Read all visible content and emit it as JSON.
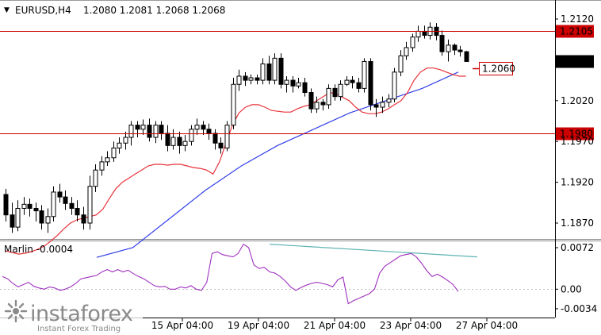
{
  "header": {
    "arrow": "▼",
    "symbol": "EURUSD,H4",
    "ohlc": "1.2080 1.2081 1.2068 1.2068"
  },
  "indicator": {
    "label": "Marlin -0.0004"
  },
  "watermark": {
    "brand": "instaforex",
    "tagline": "Instant Forex Trading"
  },
  "colors": {
    "bullish": "#ffffff",
    "bearish": "#000000",
    "candle_outline": "#000000",
    "ma_fast": "#e8333b",
    "ma_slow": "#3340e8",
    "level_line": "#cc0000",
    "oscillator": "#a030c0",
    "trend_line": "#5fb3b3",
    "grid": "#c0c0c0"
  },
  "chart_data": [
    {
      "type": "candlestick",
      "symbol": "EURUSD",
      "timeframe": "H4",
      "ylim": [
        1.1835,
        1.2135
      ],
      "y_ticks": [
        "1.2120",
        "1.2020",
        "1.1970",
        "1.1920",
        "1.1870"
      ],
      "x_ticks": [
        "15 Apr 04:00",
        "19 Apr 04:00",
        "21 Apr 04:00",
        "23 Apr 04:00",
        "27 Apr 04:00"
      ],
      "horizontal_levels": [
        {
          "value": 1.2105,
          "label": "1.2105"
        },
        {
          "value": 1.198,
          "label": "1.1980"
        }
      ],
      "current_price": {
        "value": 1.2068,
        "label": "1.2068"
      },
      "target_marker": {
        "value": 1.206,
        "label": "1.2060"
      },
      "candles": [
        [
          1.1905,
          1.188,
          1.1912,
          1.1872
        ],
        [
          1.188,
          1.1865,
          1.1895,
          1.1858
        ],
        [
          1.1865,
          1.1888,
          1.1898,
          1.186
        ],
        [
          1.1888,
          1.1893,
          1.1902,
          1.188
        ],
        [
          1.1893,
          1.1888,
          1.19,
          1.1878
        ],
        [
          1.1888,
          1.1885,
          1.1895,
          1.1872
        ],
        [
          1.1885,
          1.187,
          1.1892,
          1.1862
        ],
        [
          1.187,
          1.1878,
          1.1888,
          1.1858
        ],
        [
          1.1878,
          1.1908,
          1.1915,
          1.1872
        ],
        [
          1.1908,
          1.1902,
          1.1918,
          1.1895
        ],
        [
          1.1902,
          1.1894,
          1.191,
          1.1886
        ],
        [
          1.1894,
          1.1888,
          1.1902,
          1.188
        ],
        [
          1.1888,
          1.188,
          1.1898,
          1.1872
        ],
        [
          1.188,
          1.187,
          1.189,
          1.1862
        ],
        [
          1.187,
          1.1915,
          1.1928,
          1.1862
        ],
        [
          1.1915,
          1.1935,
          1.1942,
          1.1908
        ],
        [
          1.1935,
          1.1945,
          1.1952,
          1.1928
        ],
        [
          1.1945,
          1.195,
          1.1958,
          1.194
        ],
        [
          1.195,
          1.1962,
          1.197,
          1.1945
        ],
        [
          1.1962,
          1.1968,
          1.1975,
          1.1955
        ],
        [
          1.1968,
          1.1975,
          1.1982,
          1.196
        ],
        [
          1.1975,
          1.199,
          1.1995,
          1.1965
        ],
        [
          1.199,
          1.1985,
          1.1995,
          1.1975
        ],
        [
          1.1985,
          1.199,
          1.1997,
          1.1978
        ],
        [
          1.199,
          1.1975,
          1.1998,
          1.197
        ],
        [
          1.1975,
          1.199,
          1.1995,
          1.1968
        ],
        [
          1.199,
          1.198,
          1.1995,
          1.1972
        ],
        [
          1.198,
          1.1965,
          1.199,
          1.1958
        ],
        [
          1.1965,
          1.1975,
          1.1985,
          1.196
        ],
        [
          1.1975,
          1.1965,
          1.1982,
          1.1955
        ],
        [
          1.1965,
          1.197,
          1.1978,
          1.1958
        ],
        [
          1.197,
          1.1985,
          1.199,
          1.1965
        ],
        [
          1.1985,
          1.199,
          1.1998,
          1.1978
        ],
        [
          1.199,
          1.1985,
          1.1995,
          1.1978
        ],
        [
          1.1985,
          1.198,
          1.1992,
          1.1972
        ],
        [
          1.198,
          1.1968,
          1.1985,
          1.196
        ],
        [
          1.1968,
          1.1962,
          1.1975,
          1.1955
        ],
        [
          1.1962,
          1.199,
          1.1995,
          1.1958
        ],
        [
          1.199,
          1.204,
          1.2048,
          1.1985
        ],
        [
          1.204,
          1.205,
          1.2058,
          1.2032
        ],
        [
          1.205,
          1.2045,
          1.2055,
          1.2038
        ],
        [
          1.2045,
          1.2048,
          1.2052,
          1.204
        ],
        [
          1.2048,
          1.2045,
          1.2052,
          1.204
        ],
        [
          1.2045,
          1.2065,
          1.2072,
          1.204
        ],
        [
          1.2065,
          1.2045,
          1.2075,
          1.204
        ],
        [
          1.2045,
          1.2072,
          1.2078,
          1.204
        ],
        [
          1.2072,
          1.204,
          1.2078,
          1.2035
        ],
        [
          1.204,
          1.2045,
          1.205,
          1.203
        ],
        [
          1.2045,
          1.2038,
          1.205,
          1.203
        ],
        [
          1.2038,
          1.2042,
          1.2048,
          1.2035
        ],
        [
          1.2042,
          1.203,
          1.2048,
          1.2025
        ],
        [
          1.203,
          1.201,
          1.2035,
          1.2005
        ],
        [
          1.201,
          1.2018,
          1.2025,
          1.2005
        ],
        [
          1.2018,
          1.2015,
          1.2022,
          1.2008
        ],
        [
          1.2015,
          1.2035,
          1.204,
          1.201
        ],
        [
          1.2035,
          1.2025,
          1.204,
          1.202
        ],
        [
          1.2025,
          1.204,
          1.2045,
          1.202
        ],
        [
          1.204,
          1.2045,
          1.205,
          1.2038
        ],
        [
          1.2045,
          1.2042,
          1.205,
          1.2035
        ],
        [
          1.2042,
          1.2035,
          1.2048,
          1.203
        ],
        [
          1.2035,
          1.2068,
          1.2072,
          1.203
        ],
        [
          1.2068,
          1.2015,
          1.2072,
          1.2008
        ],
        [
          1.2015,
          1.2012,
          1.2022,
          1.2
        ],
        [
          1.2012,
          1.2018,
          1.2025,
          1.2005
        ],
        [
          1.2018,
          1.2022,
          1.2028,
          1.2012
        ],
        [
          1.2022,
          1.2055,
          1.206,
          1.2018
        ],
        [
          1.2055,
          1.2075,
          1.2082,
          1.205
        ],
        [
          1.2075,
          1.2085,
          1.2092,
          1.207
        ],
        [
          1.2085,
          1.2098,
          1.2102,
          1.208
        ],
        [
          1.2098,
          1.2105,
          1.2112,
          1.2092
        ],
        [
          1.2105,
          1.21,
          1.2112,
          1.2096
        ],
        [
          1.21,
          1.211,
          1.2116,
          1.2095
        ],
        [
          1.211,
          1.21,
          1.2115,
          1.2094
        ],
        [
          1.21,
          1.208,
          1.2106,
          1.2075
        ],
        [
          1.208,
          1.2088,
          1.2095,
          1.2068
        ],
        [
          1.2088,
          1.2082,
          1.209,
          1.2076
        ],
        [
          1.2082,
          1.208,
          1.2087,
          1.2074
        ],
        [
          1.208,
          1.2068,
          1.2081,
          1.2068
        ]
      ],
      "ma_fast": [
        1.1836,
        1.1834,
        1.1832,
        1.1833,
        1.1835,
        1.1838,
        1.1842,
        1.1848,
        1.1855,
        1.1863,
        1.187,
        1.1874,
        1.1876,
        1.1878,
        1.188,
        1.1887,
        1.19,
        1.1912,
        1.192,
        1.1925,
        1.193,
        1.1935,
        1.194,
        1.1942,
        1.1942,
        1.1941,
        1.1942,
        1.1942,
        1.194,
        1.1938,
        1.1937,
        1.1935,
        1.193,
        1.1945,
        1.1968,
        1.199,
        1.2005,
        1.2012,
        1.2015,
        1.2015,
        1.2012,
        1.2008,
        1.2007,
        1.2006,
        1.2006,
        1.201,
        1.2013,
        1.2015,
        1.202,
        1.2025,
        1.203,
        1.2028,
        1.2024,
        1.202,
        1.2012,
        1.2006,
        1.2004,
        1.2004,
        1.2006,
        1.201,
        1.2015,
        1.202,
        1.203,
        1.2045,
        1.2055,
        1.206,
        1.206,
        1.2058,
        1.2055,
        1.2052,
        1.205,
        1.205
      ],
      "ma_slow": [
        1.1828,
        1.184,
        1.1875,
        1.191,
        1.194,
        1.1965,
        1.1985,
        1.2005,
        1.202,
        1.2035,
        1.2055
      ]
    },
    {
      "type": "line",
      "name": "Marlin",
      "ylim": [
        -0.0042,
        0.0082
      ],
      "y_ticks": [
        "0.0072",
        "0.00",
        "-0.0034"
      ],
      "current_value": -0.0004,
      "values": [
        0.0022,
        0.0018,
        0.001,
        0.0004,
        0.0008,
        0.0012,
        0.0005,
        0.0002,
        0.0,
        0.0004,
        0.0002,
        -0.0002,
        0.0,
        0.0004,
        0.001,
        0.0018,
        0.002,
        0.0022,
        0.0024,
        0.003,
        0.0034,
        0.003,
        0.0034,
        0.003,
        0.0033,
        0.0027,
        0.0022,
        0.0018,
        0.0012,
        0.0006,
        0.0004,
        0.0005,
        0.0,
        0.0,
        0.0004,
        0.0002,
        0.0006,
        0.0,
        -0.0002,
        0.0012,
        0.0062,
        0.0065,
        0.006,
        0.0058,
        0.0056,
        0.0062,
        0.0078,
        0.0072,
        0.0042,
        0.0036,
        0.0038,
        0.003,
        0.0028,
        0.0022,
        0.0014,
        0.0004,
        -0.0002,
        0.0003,
        0.0007,
        0.001,
        0.0012,
        0.001,
        0.0008,
        0.0004,
        0.0016,
        0.0021,
        -0.0025,
        -0.002,
        -0.0016,
        -0.0012,
        -0.0008,
        0.0,
        0.0028,
        0.004,
        0.0046,
        0.0052,
        0.0058,
        0.006,
        0.0062,
        0.0056,
        0.0045,
        0.0032,
        0.0022,
        0.0026,
        0.0021,
        0.0015,
        0.0008,
        -0.0004
      ],
      "trend_line": [
        0.0078,
        0.0056
      ]
    }
  ]
}
